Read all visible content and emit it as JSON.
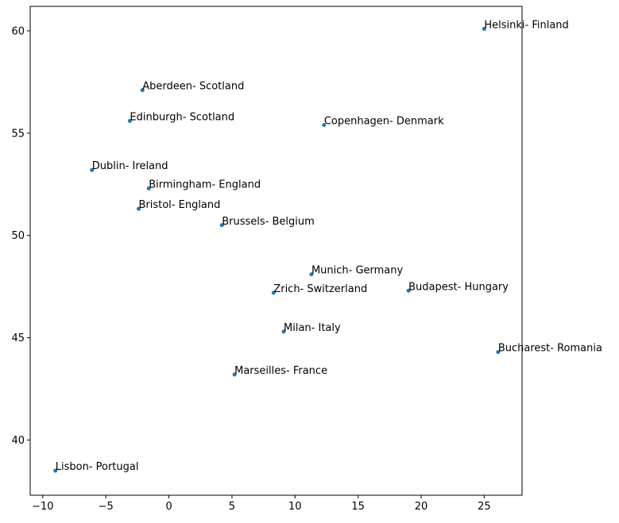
{
  "chart_data": {
    "type": "scatter",
    "title": "",
    "xlabel": "",
    "ylabel": "",
    "xlim": [
      -11,
      28
    ],
    "ylim": [
      37.3,
      61.2
    ],
    "x_ticks": [
      -10,
      -5,
      0,
      5,
      10,
      15,
      20,
      25
    ],
    "y_ticks": [
      40,
      45,
      50,
      55,
      60
    ],
    "x_tick_labels": [
      "−10",
      "−5",
      "0",
      "5",
      "10",
      "15",
      "20",
      "25"
    ],
    "y_tick_labels": [
      "40",
      "45",
      "50",
      "55",
      "60"
    ],
    "grid": false,
    "marker_color": "#1f77b4",
    "points": [
      {
        "label": "Helsinki- Finland",
        "x": 25.0,
        "y": 60.1
      },
      {
        "label": "Aberdeen- Scotland",
        "x": -2.1,
        "y": 57.1
      },
      {
        "label": "Edinburgh- Scotland",
        "x": -3.1,
        "y": 55.6
      },
      {
        "label": "Copenhagen- Denmark",
        "x": 12.3,
        "y": 55.4
      },
      {
        "label": "Dublin- Ireland",
        "x": -6.1,
        "y": 53.2
      },
      {
        "label": "Birmingham- England",
        "x": -1.6,
        "y": 52.3
      },
      {
        "label": "Bristol- England",
        "x": -2.4,
        "y": 51.3
      },
      {
        "label": "Brussels- Belgium",
        "x": 4.2,
        "y": 50.5
      },
      {
        "label": "Munich- Germany",
        "x": 11.3,
        "y": 48.1
      },
      {
        "label": "Zrich- Switzerland",
        "x": 8.3,
        "y": 47.2
      },
      {
        "label": "Budapest- Hungary",
        "x": 19.0,
        "y": 47.3
      },
      {
        "label": "Milan- Italy",
        "x": 9.1,
        "y": 45.3
      },
      {
        "label": "Bucharest- Romania",
        "x": 26.1,
        "y": 44.3
      },
      {
        "label": "Marseilles- France",
        "x": 5.2,
        "y": 43.2
      },
      {
        "label": "Lisbon- Portugal",
        "x": -9.0,
        "y": 38.5
      }
    ]
  }
}
